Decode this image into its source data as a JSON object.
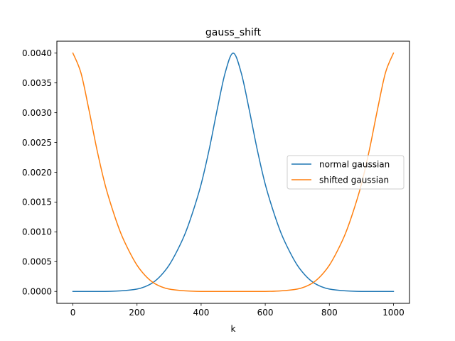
{
  "chart_data": {
    "type": "line",
    "title": "gauss_shift",
    "xlabel": "k",
    "ylabel": "",
    "xlim": [
      -50,
      1050
    ],
    "ylim": [
      -0.0002,
      0.0042
    ],
    "xticks": [
      0,
      200,
      400,
      600,
      800,
      1000
    ],
    "xtick_labels": [
      "0",
      "200",
      "400",
      "600",
      "800",
      "1000"
    ],
    "yticks": [
      0.0,
      0.0005,
      0.001,
      0.0015,
      0.002,
      0.0025,
      0.003,
      0.0035,
      0.004
    ],
    "ytick_labels": [
      "0.0000",
      "0.0005",
      "0.0010",
      "0.0015",
      "0.0020",
      "0.0025",
      "0.0030",
      "0.0035",
      "0.0040"
    ],
    "grid": false,
    "legend_position": "center-right",
    "series": [
      {
        "name": "normal gaussian",
        "color": "#1f77b4",
        "x": [
          0,
          100,
          150,
          200,
          225,
          250,
          275,
          300,
          325,
          350,
          375,
          400,
          425,
          450,
          475,
          500,
          525,
          550,
          575,
          600,
          625,
          650,
          675,
          700,
          725,
          750,
          775,
          800,
          850,
          900,
          1000
        ],
        "y": [
          0.0,
          0.0,
          1e-05,
          4e-05,
          8e-05,
          0.00015,
          0.00027,
          0.00044,
          0.00068,
          0.00097,
          0.00135,
          0.0018,
          0.00238,
          0.00305,
          0.00367,
          0.004,
          0.00367,
          0.00305,
          0.00238,
          0.0018,
          0.00135,
          0.00097,
          0.00068,
          0.00044,
          0.00027,
          0.00015,
          8e-05,
          4e-05,
          1e-05,
          0.0,
          0.0
        ]
      },
      {
        "name": "shifted gaussian",
        "color": "#ff7f0e",
        "x": [
          0,
          25,
          50,
          75,
          100,
          125,
          150,
          175,
          200,
          225,
          250,
          275,
          300,
          350,
          400,
          500,
          600,
          650,
          700,
          725,
          750,
          775,
          800,
          825,
          850,
          875,
          900,
          925,
          950,
          975,
          1000
        ],
        "y": [
          0.004,
          0.00367,
          0.00305,
          0.00238,
          0.0018,
          0.00135,
          0.00097,
          0.00068,
          0.00044,
          0.00027,
          0.00015,
          8e-05,
          4e-05,
          1e-05,
          0.0,
          0.0,
          0.0,
          1e-05,
          4e-05,
          8e-05,
          0.00015,
          0.00027,
          0.00044,
          0.00068,
          0.00097,
          0.00135,
          0.0018,
          0.00238,
          0.00305,
          0.00367,
          0.004
        ]
      }
    ]
  }
}
